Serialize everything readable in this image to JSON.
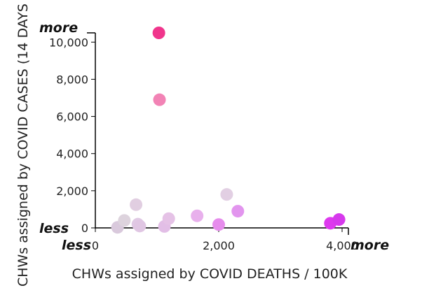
{
  "chart_data": {
    "type": "scatter",
    "xlabel": "CHWs assigned by COVID DEATHS / 100K",
    "ylabel": "CHWs assigned by COVID CASES (14 DAYS",
    "xlim": [
      0,
      4000
    ],
    "ylim": [
      0,
      10500
    ],
    "x_ticks": [
      "0",
      "2,000",
      "4,000"
    ],
    "y_ticks": [
      "0",
      "2,000",
      "4,000",
      "6,000",
      "8,000",
      "10,000"
    ],
    "x_low_label": "less",
    "x_high_label": "more",
    "y_low_label": "less",
    "y_high_label": "more",
    "grid": false,
    "points": [
      {
        "x": 1030,
        "y": 10500,
        "color": "#f0358c"
      },
      {
        "x": 1040,
        "y": 6900,
        "color": "#f283b5"
      },
      {
        "x": 360,
        "y": 30,
        "color": "#d9c9dc"
      },
      {
        "x": 470,
        "y": 400,
        "color": "#ddd3dd"
      },
      {
        "x": 660,
        "y": 1250,
        "color": "#e1cee1"
      },
      {
        "x": 690,
        "y": 200,
        "color": "#e0c9e4"
      },
      {
        "x": 720,
        "y": 100,
        "color": "#e0c6e3"
      },
      {
        "x": 1120,
        "y": 80,
        "color": "#e2bee6"
      },
      {
        "x": 1190,
        "y": 500,
        "color": "#e5c2e6"
      },
      {
        "x": 1650,
        "y": 650,
        "color": "#e8b0ec"
      },
      {
        "x": 2000,
        "y": 180,
        "color": "#e68cec"
      },
      {
        "x": 2130,
        "y": 1800,
        "color": "#e2cfe3"
      },
      {
        "x": 2310,
        "y": 900,
        "color": "#e295ee"
      },
      {
        "x": 3810,
        "y": 250,
        "color": "#dd39ee"
      },
      {
        "x": 3950,
        "y": 450,
        "color": "#d639ec"
      }
    ]
  }
}
